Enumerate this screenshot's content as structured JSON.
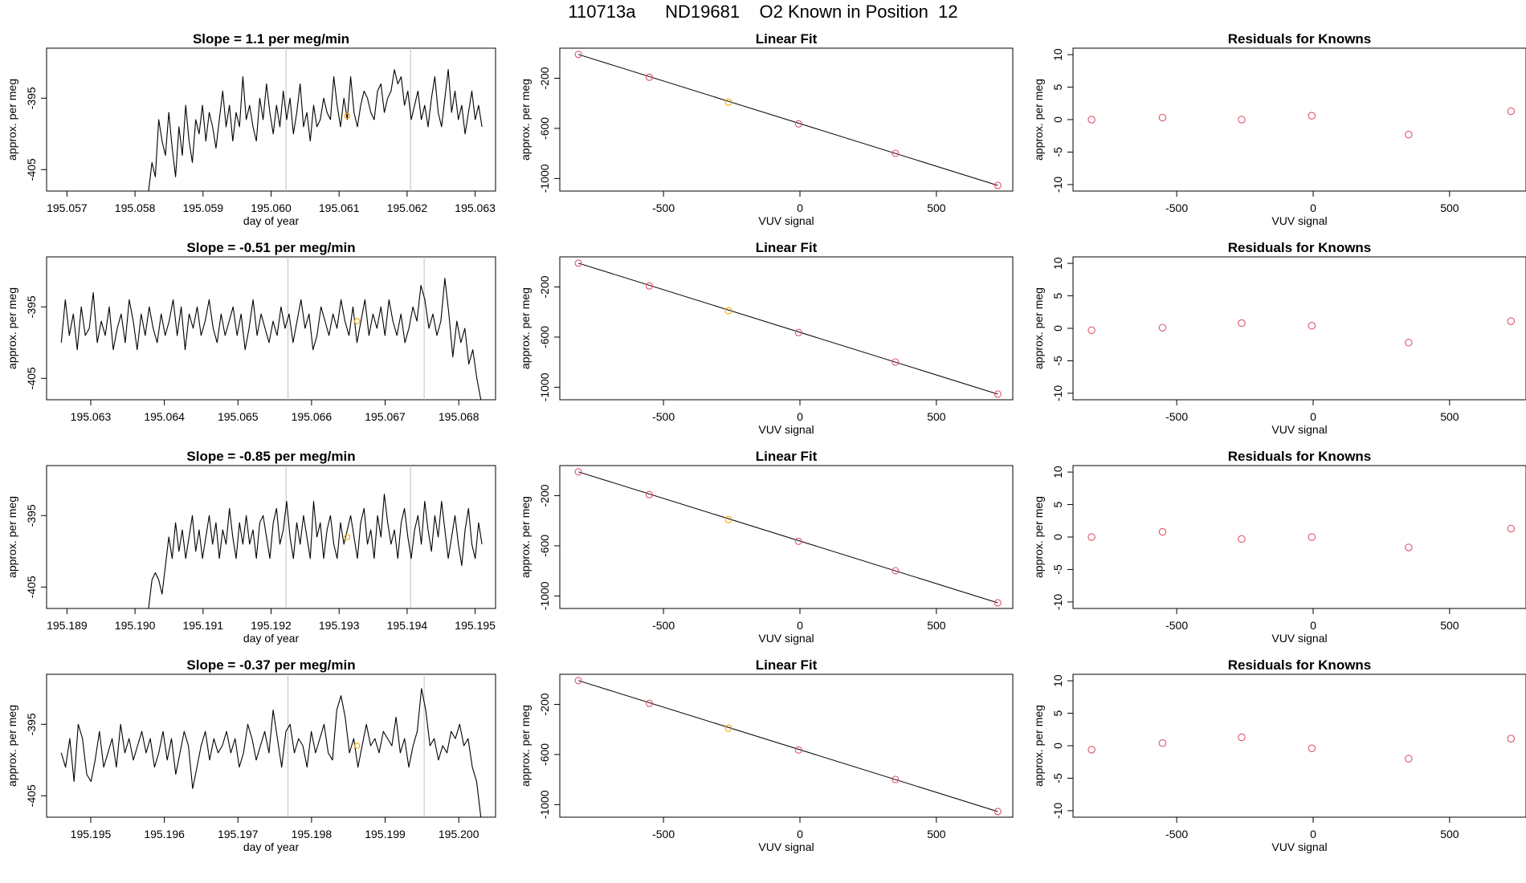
{
  "page_title": "110713a      ND19681    O2 Known in Position  12",
  "colors": {
    "line": "#000000",
    "known_highlight": "#ffa500",
    "residual_point": "#df536b",
    "fit_point": "#df536b",
    "vline": "#bebebe",
    "frame": "#000000"
  },
  "chart_data": [
    {
      "type": "line",
      "panel": "time-series",
      "row": 1,
      "title": "Slope =  1.1  per meg/min",
      "xlabel": "day of year",
      "ylabel": "approx. per meg",
      "xticks": [
        195.057,
        195.058,
        195.059,
        195.06,
        195.061,
        195.062,
        195.063
      ],
      "xtick_labels": [
        "195.057",
        "195.058",
        "195.059",
        "195.060",
        "195.061",
        "195.062",
        "195.063"
      ],
      "yticks": [
        -405,
        -395
      ],
      "ytick_labels": [
        "-405",
        "-395"
      ],
      "xlim": [
        195.0567,
        195.0633
      ],
      "ylim": [
        -408,
        -388
      ],
      "vlines": [
        195.06022,
        195.06205
      ],
      "highlight_point": {
        "x": 195.06112,
        "y": -397.5
      },
      "x_start": 195.0582,
      "x_end": 195.0631,
      "series": [
        {
          "values": [
            -408,
            -404,
            -406,
            -398,
            -401,
            -403,
            -397,
            -402,
            -406,
            -399,
            -403,
            -396,
            -401,
            -404,
            -398,
            -400,
            -396,
            -401,
            -397,
            -399,
            -402,
            -398,
            -394,
            -399,
            -396,
            -401,
            -397,
            -399,
            -392,
            -398,
            -396,
            -399,
            -401,
            -395,
            -398,
            -393,
            -397,
            -400,
            -396,
            -399,
            -394,
            -398,
            -395,
            -400,
            -397,
            -393,
            -399,
            -397,
            -401,
            -396,
            -399,
            -398,
            -395,
            -397,
            -398,
            -392,
            -396,
            -399,
            -395,
            -398,
            -392,
            -397,
            -399,
            -396,
            -394,
            -395,
            -397,
            -398,
            -394,
            -393,
            -397,
            -395,
            -394,
            -391,
            -393,
            -392,
            -396,
            -394,
            -398,
            -396,
            -394,
            -398,
            -396,
            -399,
            -395,
            -392,
            -397,
            -399,
            -395,
            -391,
            -397,
            -394,
            -398,
            -396,
            -400,
            -397,
            -394,
            -398,
            -396,
            -399
          ]
        }
      ]
    },
    {
      "type": "scatter",
      "panel": "linear-fit",
      "row": 1,
      "title": "Linear Fit",
      "xlabel": "VUV signal",
      "ylabel": "approx. per meg",
      "xticks": [
        -500,
        0,
        500
      ],
      "xtick_labels": [
        "-500",
        "0",
        "500"
      ],
      "yticks": [
        -1000,
        -600,
        -200
      ],
      "ytick_labels": [
        "-1000",
        "-600",
        "-200"
      ],
      "xlim": [
        -880,
        780
      ],
      "ylim": [
        -1100,
        40
      ],
      "points": [
        [
          -812,
          -10
        ],
        [
          -552,
          -192
        ],
        [
          -262,
          -390
        ],
        [
          -5,
          -564
        ],
        [
          350,
          -799
        ],
        [
          725,
          -1055
        ]
      ],
      "highlight_index": 2
    },
    {
      "type": "scatter",
      "panel": "residuals",
      "row": 1,
      "title": "Residuals for Knowns",
      "xlabel": "VUV signal",
      "ylabel": "approx. per meg",
      "xticks": [
        -500,
        0,
        500
      ],
      "xtick_labels": [
        "-500",
        "0",
        "500"
      ],
      "yticks": [
        -10,
        -5,
        0,
        5,
        10
      ],
      "ytick_labels": [
        "-10",
        "-5",
        "0",
        "5",
        "10"
      ],
      "xlim": [
        -880,
        780
      ],
      "ylim": [
        -11,
        11
      ],
      "points": [
        [
          -812,
          0.0
        ],
        [
          -552,
          0.3
        ],
        [
          -262,
          0.0
        ],
        [
          -5,
          0.6
        ],
        [
          350,
          -2.3
        ],
        [
          725,
          1.3
        ]
      ]
    },
    {
      "type": "line",
      "panel": "time-series",
      "row": 2,
      "title": "Slope =  -0.51  per meg/min",
      "xlabel": "",
      "ylabel": "approx. per meg",
      "xticks": [
        195.063,
        195.064,
        195.065,
        195.066,
        195.067,
        195.068
      ],
      "xtick_labels": [
        "195.063",
        "195.064",
        "195.065",
        "195.066",
        "195.067",
        "195.068"
      ],
      "yticks": [
        -405,
        -395
      ],
      "ytick_labels": [
        "-405",
        "-395"
      ],
      "xlim": [
        195.0624,
        195.0685
      ],
      "ylim": [
        -408,
        -388
      ],
      "vlines": [
        195.06568,
        195.06753
      ],
      "highlight_point": {
        "x": 195.06662,
        "y": -397
      },
      "x_start": 195.0626,
      "x_end": 195.0683,
      "series": [
        {
          "values": [
            -400,
            -394,
            -399,
            -396,
            -401,
            -395,
            -399,
            -398,
            -393,
            -400,
            -397,
            -399,
            -395,
            -401,
            -398,
            -396,
            -400,
            -394,
            -397,
            -401,
            -396,
            -399,
            -395,
            -398,
            -400,
            -396,
            -399,
            -397,
            -394,
            -399,
            -395,
            -401,
            -396,
            -398,
            -395,
            -399,
            -397,
            -394,
            -398,
            -400,
            -396,
            -399,
            -397,
            -395,
            -399,
            -396,
            -401,
            -398,
            -394,
            -399,
            -396,
            -398,
            -400,
            -397,
            -399,
            -395,
            -398,
            -396,
            -400,
            -397,
            -394,
            -398,
            -396,
            -401,
            -399,
            -395,
            -397,
            -399,
            -396,
            -398,
            -394,
            -397,
            -399,
            -395,
            -400,
            -397,
            -394,
            -399,
            -396,
            -398,
            -395,
            -399,
            -394,
            -397,
            -399,
            -396,
            -400,
            -398,
            -395,
            -397,
            -392,
            -394,
            -398,
            -396,
            -399,
            -397,
            -391,
            -396,
            -402,
            -397,
            -400,
            -398,
            -403,
            -401,
            -405,
            -408
          ]
        }
      ]
    },
    {
      "type": "scatter",
      "panel": "linear-fit",
      "row": 2,
      "title": "Linear Fit",
      "xlabel": "VUV signal",
      "ylabel": "approx. per meg",
      "xticks": [
        -500,
        0,
        500
      ],
      "xtick_labels": [
        "-500",
        "0",
        "500"
      ],
      "yticks": [
        -1000,
        -600,
        -200
      ],
      "ytick_labels": [
        "-1000",
        "-600",
        "-200"
      ],
      "xlim": [
        -880,
        780
      ],
      "ylim": [
        -1100,
        40
      ],
      "points": [
        [
          -812,
          -10
        ],
        [
          -552,
          -192
        ],
        [
          -262,
          -390
        ],
        [
          -5,
          -564
        ],
        [
          350,
          -799
        ],
        [
          725,
          -1055
        ]
      ],
      "highlight_index": 2
    },
    {
      "type": "scatter",
      "panel": "residuals",
      "row": 2,
      "title": "Residuals for Knowns",
      "xlabel": "VUV signal",
      "ylabel": "approx. per meg",
      "xticks": [
        -500,
        0,
        500
      ],
      "xtick_labels": [
        "-500",
        "0",
        "500"
      ],
      "yticks": [
        -10,
        -5,
        0,
        5,
        10
      ],
      "ytick_labels": [
        "-10",
        "-5",
        "0",
        "5",
        "10"
      ],
      "xlim": [
        -880,
        780
      ],
      "ylim": [
        -11,
        11
      ],
      "points": [
        [
          -812,
          -0.3
        ],
        [
          -552,
          0.1
        ],
        [
          -262,
          0.8
        ],
        [
          -5,
          0.4
        ],
        [
          350,
          -2.2
        ],
        [
          725,
          1.1
        ]
      ]
    },
    {
      "type": "line",
      "panel": "time-series",
      "row": 3,
      "title": "Slope =  -0.85  per meg/min",
      "xlabel": "day of year",
      "ylabel": "approx. per meg",
      "xticks": [
        195.189,
        195.19,
        195.191,
        195.192,
        195.193,
        195.194,
        195.195
      ],
      "xtick_labels": [
        "195.189",
        "195.190",
        "195.191",
        "195.192",
        "195.193",
        "195.194",
        "195.195"
      ],
      "yticks": [
        -405,
        -395
      ],
      "ytick_labels": [
        "-405",
        "-395"
      ],
      "xlim": [
        195.1887,
        195.1953
      ],
      "ylim": [
        -408,
        -388
      ],
      "vlines": [
        195.19222,
        195.19405
      ],
      "highlight_point": {
        "x": 195.19312,
        "y": -398
      },
      "x_start": 195.1902,
      "x_end": 195.1951,
      "series": [
        {
          "values": [
            -408,
            -404,
            -403,
            -404,
            -406,
            -402,
            -398,
            -401,
            -396,
            -400,
            -397,
            -401,
            -398,
            -395,
            -400,
            -397,
            -401,
            -398,
            -395,
            -399,
            -396,
            -401,
            -397,
            -399,
            -394,
            -398,
            -401,
            -396,
            -399,
            -395,
            -399,
            -397,
            -401,
            -396,
            -395,
            -398,
            -401,
            -396,
            -394,
            -399,
            -397,
            -393,
            -398,
            -401,
            -396,
            -399,
            -395,
            -398,
            -401,
            -393,
            -398,
            -396,
            -401,
            -397,
            -395,
            -399,
            -401,
            -396,
            -399,
            -397,
            -395,
            -398,
            -401,
            -396,
            -394,
            -399,
            -397,
            -401,
            -395,
            -398,
            -392,
            -396,
            -399,
            -397,
            -401,
            -396,
            -394,
            -398,
            -401,
            -397,
            -395,
            -399,
            -393,
            -397,
            -400,
            -395,
            -398,
            -393,
            -397,
            -401,
            -398,
            -395,
            -399,
            -402,
            -397,
            -394,
            -399,
            -401,
            -396,
            -399
          ]
        }
      ]
    },
    {
      "type": "scatter",
      "panel": "linear-fit",
      "row": 3,
      "title": "Linear Fit",
      "xlabel": "VUV signal",
      "ylabel": "approx. per meg",
      "xticks": [
        -500,
        0,
        500
      ],
      "xtick_labels": [
        "-500",
        "0",
        "500"
      ],
      "yticks": [
        -1000,
        -600,
        -200
      ],
      "ytick_labels": [
        "-1000",
        "-600",
        "-200"
      ],
      "xlim": [
        -880,
        780
      ],
      "ylim": [
        -1100,
        40
      ],
      "points": [
        [
          -812,
          -10
        ],
        [
          -552,
          -192
        ],
        [
          -262,
          -390
        ],
        [
          -5,
          -564
        ],
        [
          350,
          -799
        ],
        [
          725,
          -1055
        ]
      ],
      "highlight_index": 2
    },
    {
      "type": "scatter",
      "panel": "residuals",
      "row": 3,
      "title": "Residuals for Knowns",
      "xlabel": "VUV signal",
      "ylabel": "approx. per meg",
      "xticks": [
        -500,
        0,
        500
      ],
      "xtick_labels": [
        "-500",
        "0",
        "500"
      ],
      "yticks": [
        -10,
        -5,
        0,
        5,
        10
      ],
      "ytick_labels": [
        "-10",
        "-5",
        "0",
        "5",
        "10"
      ],
      "xlim": [
        -880,
        780
      ],
      "ylim": [
        -11,
        11
      ],
      "points": [
        [
          -812,
          0.0
        ],
        [
          -552,
          0.8
        ],
        [
          -262,
          -0.3
        ],
        [
          -5,
          0.0
        ],
        [
          350,
          -1.6
        ],
        [
          725,
          1.3
        ]
      ]
    },
    {
      "type": "line",
      "panel": "time-series",
      "row": 4,
      "title": "Slope =  -0.37  per meg/min",
      "xlabel": "day of year",
      "ylabel": "approx. per meg",
      "xticks": [
        195.195,
        195.196,
        195.197,
        195.198,
        195.199,
        195.2
      ],
      "xtick_labels": [
        "195.195",
        "195.196",
        "195.197",
        "195.198",
        "195.199",
        "195.200"
      ],
      "yticks": [
        -405,
        -395
      ],
      "ytick_labels": [
        "-405",
        "-395"
      ],
      "xlim": [
        195.1944,
        195.2005
      ],
      "ylim": [
        -408,
        -388
      ],
      "vlines": [
        195.19768,
        195.19953
      ],
      "highlight_point": {
        "x": 195.19862,
        "y": -398
      },
      "x_start": 195.1946,
      "x_end": 195.2003,
      "series": [
        {
          "values": [
            -399,
            -401,
            -397,
            -403,
            -395,
            -397,
            -402,
            -403,
            -400,
            -396,
            -401,
            -399,
            -397,
            -401,
            -395,
            -399,
            -397,
            -400,
            -398,
            -396,
            -399,
            -397,
            -401,
            -399,
            -396,
            -400,
            -397,
            -402,
            -399,
            -396,
            -398,
            -404,
            -401,
            -398,
            -396,
            -400,
            -397,
            -399,
            -398,
            -396,
            -399,
            -397,
            -401,
            -399,
            -395,
            -397,
            -400,
            -398,
            -396,
            -399,
            -393,
            -397,
            -401,
            -396,
            -395,
            -399,
            -397,
            -398,
            -401,
            -396,
            -399,
            -397,
            -395,
            -399,
            -400,
            -393,
            -391,
            -394,
            -399,
            -397,
            -401,
            -398,
            -395,
            -398,
            -397,
            -399,
            -396,
            -397,
            -398,
            -394,
            -399,
            -397,
            -401,
            -398,
            -396,
            -390,
            -393,
            -398,
            -397,
            -400,
            -398,
            -399,
            -396,
            -397,
            -395,
            -398,
            -397,
            -401,
            -403,
            -408
          ]
        }
      ]
    },
    {
      "type": "scatter",
      "panel": "linear-fit",
      "row": 4,
      "title": "Linear Fit",
      "xlabel": "VUV signal",
      "ylabel": "approx. per meg",
      "xticks": [
        -500,
        0,
        500
      ],
      "xtick_labels": [
        "-500",
        "0",
        "500"
      ],
      "yticks": [
        -1000,
        -600,
        -200
      ],
      "ytick_labels": [
        "-1000",
        "-600",
        "-200"
      ],
      "xlim": [
        -880,
        780
      ],
      "ylim": [
        -1100,
        40
      ],
      "points": [
        [
          -812,
          -10
        ],
        [
          -552,
          -192
        ],
        [
          -262,
          -390
        ],
        [
          -5,
          -564
        ],
        [
          350,
          -799
        ],
        [
          725,
          -1055
        ]
      ],
      "highlight_index": 2
    },
    {
      "type": "scatter",
      "panel": "residuals",
      "row": 4,
      "title": "Residuals for Knowns",
      "xlabel": "VUV signal",
      "ylabel": "approx. per meg",
      "xticks": [
        -500,
        0,
        500
      ],
      "xtick_labels": [
        "-500",
        "0",
        "500"
      ],
      "yticks": [
        -10,
        -5,
        0,
        5,
        10
      ],
      "ytick_labels": [
        "-10",
        "-5",
        "0",
        "5",
        "10"
      ],
      "xlim": [
        -880,
        780
      ],
      "ylim": [
        -11,
        11
      ],
      "points": [
        [
          -812,
          -0.6
        ],
        [
          -552,
          0.4
        ],
        [
          -262,
          1.3
        ],
        [
          -5,
          -0.4
        ],
        [
          350,
          -2.0
        ],
        [
          725,
          1.1
        ]
      ]
    }
  ]
}
